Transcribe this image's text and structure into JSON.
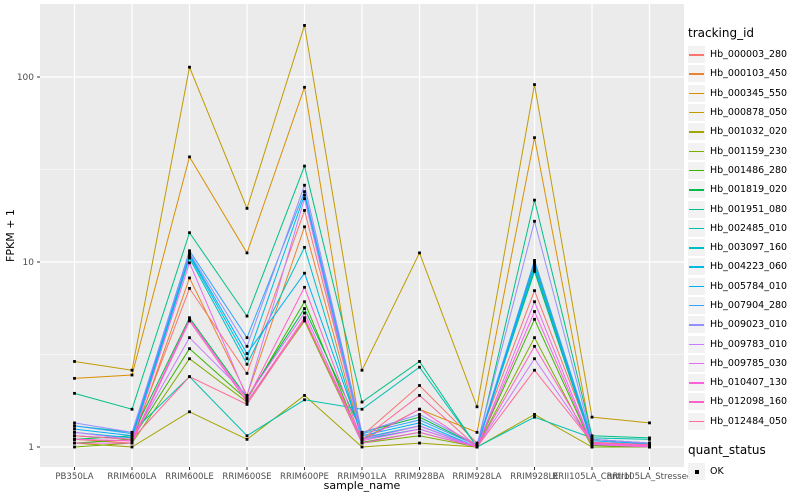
{
  "chart_data": {
    "type": "line",
    "title": "",
    "xlabel": "sample_name",
    "ylabel": "FPKM + 1",
    "y_scale": "log10",
    "y_ticks": [
      1,
      10,
      100
    ],
    "y_minor_ticks": [
      3.162,
      31.62
    ],
    "ylim": [
      0.8,
      245
    ],
    "grid": true,
    "legend_position": "right",
    "panel_bg": "#EBEBEB",
    "grid_color": "#FFFFFF",
    "tick_text_color": "#4D4D4D",
    "point_color": "#000000",
    "x_categories": [
      "PB350LA",
      "RRIM600LA",
      "RRIM600LE",
      "RRIM600SE",
      "RRIM600PE",
      "RRIM901LA",
      "RRIM928BA",
      "RRIM928LA",
      "RRIM928LE",
      "RRII105LA_Control",
      "RRII105LA_Stressed"
    ],
    "legend_tracking": {
      "title": "tracking_id"
    },
    "legend_quant": {
      "title": "quant_status",
      "items": [
        {
          "label": "OK",
          "color": "#000000"
        }
      ]
    },
    "series": [
      {
        "name": "Hb_000003_280",
        "color": "#F8766D",
        "values": [
          1.15,
          1.1,
          7.2,
          2.5,
          19,
          1.15,
          2.15,
          1.05,
          7.0,
          1.1,
          1.05
        ]
      },
      {
        "name": "Hb_000103_450",
        "color": "#EA8331",
        "values": [
          1.1,
          1.05,
          8.2,
          1.9,
          15.5,
          1.1,
          1.3,
          1.0,
          9.8,
          1.05,
          1.0
        ]
      },
      {
        "name": "Hb_000345_550",
        "color": "#D89000",
        "values": [
          2.35,
          2.45,
          37,
          11.2,
          88,
          1.1,
          1.6,
          1.2,
          47,
          1.1,
          1.05
        ]
      },
      {
        "name": "Hb_000878_050",
        "color": "#C09B00",
        "values": [
          2.9,
          2.6,
          113,
          19.5,
          190,
          2.6,
          11.2,
          1.65,
          91,
          1.45,
          1.35
        ]
      },
      {
        "name": "Hb_001032_020",
        "color": "#A3A500",
        "values": [
          1.05,
          1.0,
          1.55,
          1.1,
          1.9,
          1.0,
          1.05,
          1.0,
          1.5,
          1.0,
          1.0
        ]
      },
      {
        "name": "Hb_001159_230",
        "color": "#7CAE00",
        "values": [
          1.0,
          1.05,
          3.0,
          1.75,
          4.8,
          1.05,
          1.15,
          1.0,
          3.9,
          1.0,
          1.0
        ]
      },
      {
        "name": "Hb_001486_280",
        "color": "#39B600",
        "values": [
          1.05,
          1.1,
          3.4,
          1.8,
          6.1,
          1.06,
          1.2,
          1.0,
          4.9,
          1.02,
          1.0
        ]
      },
      {
        "name": "Hb_001819_020",
        "color": "#00BB4E",
        "values": [
          1.1,
          1.15,
          5.0,
          1.85,
          5.6,
          1.2,
          1.45,
          1.02,
          8.9,
          1.05,
          1.02
        ]
      },
      {
        "name": "Hb_001951_080",
        "color": "#00C087",
        "values": [
          1.95,
          1.6,
          14.4,
          5.1,
          33,
          1.75,
          2.9,
          1.0,
          21.6,
          1.15,
          1.12
        ]
      },
      {
        "name": "Hb_002485_010",
        "color": "#00C0AF",
        "values": [
          1.3,
          1.2,
          2.4,
          1.15,
          1.8,
          1.6,
          2.7,
          1.0,
          1.45,
          1.12,
          1.1
        ]
      },
      {
        "name": "Hb_003097_160",
        "color": "#00BFC4",
        "values": [
          1.15,
          1.1,
          10.5,
          2.8,
          12,
          1.1,
          1.25,
          1.0,
          9.5,
          1.05,
          1.02
        ]
      },
      {
        "name": "Hb_004223_060",
        "color": "#00BAE0",
        "values": [
          1.2,
          1.12,
          10.8,
          3.0,
          23,
          1.12,
          1.3,
          1.0,
          9.2,
          1.06,
          1.03
        ]
      },
      {
        "name": "Hb_005784_010",
        "color": "#00B0F6",
        "values": [
          1.25,
          1.15,
          11.0,
          3.2,
          8.7,
          1.15,
          1.35,
          1.0,
          10.0,
          1.08,
          1.04
        ]
      },
      {
        "name": "Hb_007904_280",
        "color": "#35A2FF",
        "values": [
          1.3,
          1.18,
          11.5,
          3.9,
          24,
          1.18,
          1.4,
          1.02,
          10.2,
          1.1,
          1.05
        ]
      },
      {
        "name": "Hb_009023_010",
        "color": "#9590FF",
        "values": [
          1.35,
          1.2,
          11.2,
          3.5,
          26,
          1.2,
          1.5,
          1.03,
          16.6,
          1.1,
          1.05
        ]
      },
      {
        "name": "Hb_009783_010",
        "color": "#C77CFF",
        "values": [
          1.2,
          1.1,
          3.9,
          1.9,
          22,
          1.1,
          1.3,
          1.0,
          3.0,
          1.05,
          1.02
        ]
      },
      {
        "name": "Hb_009785_030",
        "color": "#E76BF3",
        "values": [
          1.1,
          1.08,
          9.9,
          1.85,
          5.3,
          1.08,
          1.25,
          1.0,
          6.1,
          1.04,
          1.01
        ]
      },
      {
        "name": "Hb_010407_130",
        "color": "#FA62DB",
        "values": [
          1.05,
          1.05,
          4.8,
          1.75,
          5.0,
          1.05,
          1.2,
          1.0,
          5.4,
          1.03,
          1.0
        ]
      },
      {
        "name": "Hb_012098_160",
        "color": "#FF61C9",
        "values": [
          1.1,
          1.08,
          4.9,
          1.8,
          7.3,
          1.08,
          1.6,
          1.0,
          3.5,
          1.05,
          1.02
        ]
      },
      {
        "name": "Hb_012484_050",
        "color": "#FF6A98",
        "values": [
          1.15,
          1.1,
          2.4,
          1.7,
          4.9,
          1.1,
          1.9,
          1.0,
          2.6,
          1.06,
          1.03
        ]
      }
    ]
  }
}
